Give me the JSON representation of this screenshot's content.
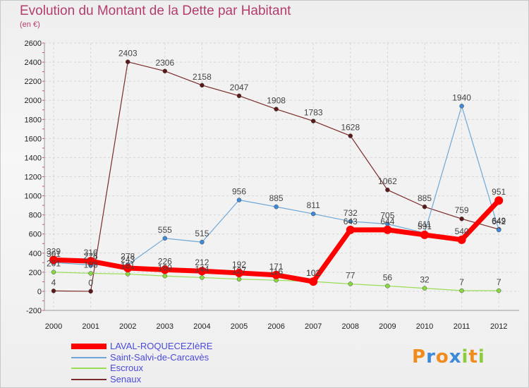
{
  "chart_data": {
    "type": "line",
    "title": "Evolution du Montant de la Dette par Habitant",
    "subtitle": "(en €)",
    "x": [
      "2000",
      "2001",
      "2002",
      "2003",
      "2004",
      "2005",
      "2006",
      "2007",
      "2008",
      "2009",
      "2010",
      "2011",
      "2012"
    ],
    "ylim": [
      -200,
      2600
    ],
    "yticks": [
      -200,
      0,
      200,
      400,
      600,
      800,
      1000,
      1200,
      1400,
      1600,
      1800,
      2000,
      2200,
      2400,
      2600
    ],
    "grid": true,
    "legend_position": "bottom-left",
    "series": [
      {
        "name": "LAVAL-ROQUECEZIèRE",
        "color": "#ff0000",
        "values": [
          329,
          316,
          243,
          226,
          212,
          192,
          171,
          102,
          643,
          644,
          591,
          540,
          951
        ]
      },
      {
        "name": "Saint-Salvi-de-Carcavès",
        "color": "#6fa8d8",
        "values": [
          301,
          276,
          278,
          555,
          515,
          956,
          885,
          811,
          732,
          705,
          611,
          1940,
          642
        ]
      },
      {
        "name": "Escroux",
        "color": "#99dd55",
        "values": [
          201,
          188,
          181,
          160,
          144,
          127,
          116,
          102,
          77,
          56,
          32,
          7,
          7
        ]
      },
      {
        "name": "Senaux",
        "color": "#7a2a2a",
        "values": [
          4,
          0,
          2403,
          2306,
          2158,
          2047,
          1908,
          1783,
          1628,
          1062,
          885,
          759,
          649
        ]
      }
    ]
  },
  "logo": {
    "letters": [
      "P",
      "r",
      "o",
      "x",
      "i",
      "t",
      "i"
    ],
    "colors": [
      "#f08c1e",
      "#3c8ad8",
      "#f08c1e",
      "#3c8ad8",
      "#8ccc3c",
      "#f08c1e",
      "#8ccc3c"
    ]
  }
}
